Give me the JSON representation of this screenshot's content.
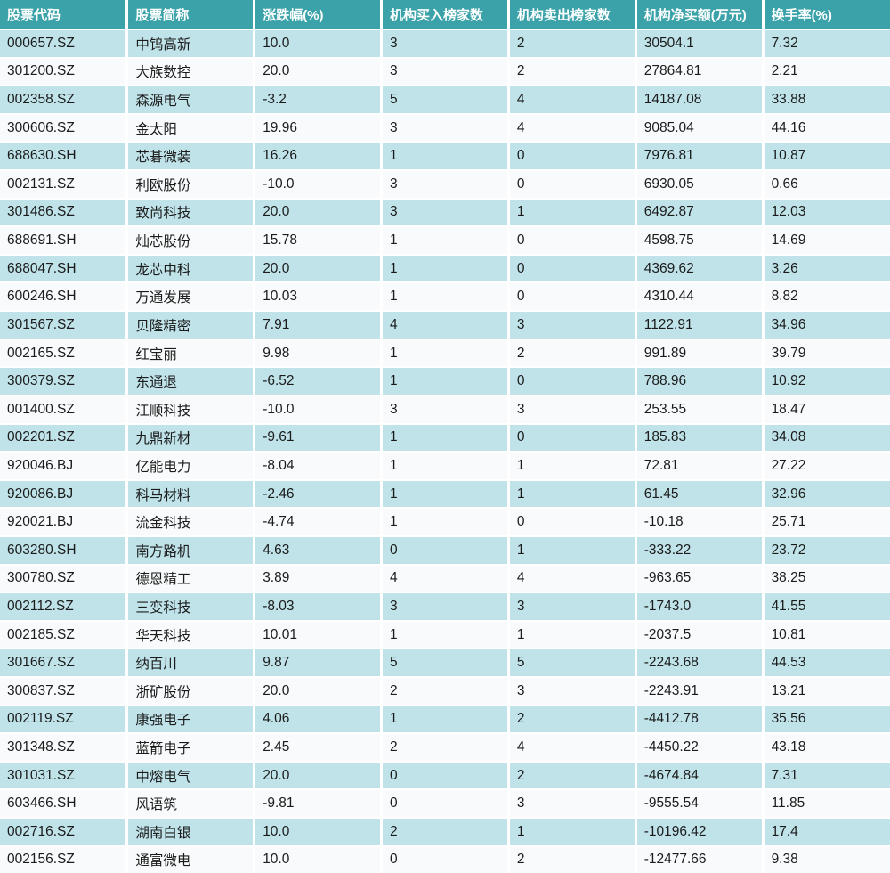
{
  "colors": {
    "header_bg": "#3AA2A8",
    "header_text": "#FFFFFF",
    "row_alt_bg": "#BFE3E9",
    "row_bg": "#F8FAFB",
    "grid_line": "#FFFFFF",
    "body_text": "#1B1B1B"
  },
  "chart_data": {
    "type": "table",
    "title": "",
    "columns": [
      "股票代码",
      "股票简称",
      "涨跌幅(%)",
      "机构买入榜家数",
      "机构卖出榜家数",
      "机构净买额(万元)",
      "换手率(%)"
    ],
    "rows": [
      [
        "000657.SZ",
        "中钨高新",
        "10.0",
        "3",
        "2",
        "30504.1",
        "7.32"
      ],
      [
        "301200.SZ",
        "大族数控",
        "20.0",
        "3",
        "2",
        "27864.81",
        "2.21"
      ],
      [
        "002358.SZ",
        "森源电气",
        "-3.2",
        "5",
        "4",
        "14187.08",
        "33.88"
      ],
      [
        "300606.SZ",
        "金太阳",
        "19.96",
        "3",
        "4",
        "9085.04",
        "44.16"
      ],
      [
        "688630.SH",
        "芯碁微装",
        "16.26",
        "1",
        "0",
        "7976.81",
        "10.87"
      ],
      [
        "002131.SZ",
        "利欧股份",
        "-10.0",
        "3",
        "0",
        "6930.05",
        "0.66"
      ],
      [
        "301486.SZ",
        "致尚科技",
        "20.0",
        "3",
        "1",
        "6492.87",
        "12.03"
      ],
      [
        "688691.SH",
        "灿芯股份",
        "15.78",
        "1",
        "0",
        "4598.75",
        "14.69"
      ],
      [
        "688047.SH",
        "龙芯中科",
        "20.0",
        "1",
        "0",
        "4369.62",
        "3.26"
      ],
      [
        "600246.SH",
        "万通发展",
        "10.03",
        "1",
        "0",
        "4310.44",
        "8.82"
      ],
      [
        "301567.SZ",
        "贝隆精密",
        "7.91",
        "4",
        "3",
        "1122.91",
        "34.96"
      ],
      [
        "002165.SZ",
        "红宝丽",
        "9.98",
        "1",
        "2",
        "991.89",
        "39.79"
      ],
      [
        "300379.SZ",
        "东通退",
        "-6.52",
        "1",
        "0",
        "788.96",
        "10.92"
      ],
      [
        "001400.SZ",
        "江顺科技",
        "-10.0",
        "3",
        "3",
        "253.55",
        "18.47"
      ],
      [
        "002201.SZ",
        "九鼎新材",
        "-9.61",
        "1",
        "0",
        "185.83",
        "34.08"
      ],
      [
        "920046.BJ",
        "亿能电力",
        "-8.04",
        "1",
        "1",
        "72.81",
        "27.22"
      ],
      [
        "920086.BJ",
        "科马材料",
        "-2.46",
        "1",
        "1",
        "61.45",
        "32.96"
      ],
      [
        "920021.BJ",
        "流金科技",
        "-4.74",
        "1",
        "0",
        "-10.18",
        "25.71"
      ],
      [
        "603280.SH",
        "南方路机",
        "4.63",
        "0",
        "1",
        "-333.22",
        "23.72"
      ],
      [
        "300780.SZ",
        "德恩精工",
        "3.89",
        "4",
        "4",
        "-963.65",
        "38.25"
      ],
      [
        "002112.SZ",
        "三变科技",
        "-8.03",
        "3",
        "3",
        "-1743.0",
        "41.55"
      ],
      [
        "002185.SZ",
        "华天科技",
        "10.01",
        "1",
        "1",
        "-2037.5",
        "10.81"
      ],
      [
        "301667.SZ",
        "纳百川",
        "9.87",
        "5",
        "5",
        "-2243.68",
        "44.53"
      ],
      [
        "300837.SZ",
        "浙矿股份",
        "20.0",
        "2",
        "3",
        "-2243.91",
        "13.21"
      ],
      [
        "002119.SZ",
        "康强电子",
        "4.06",
        "1",
        "2",
        "-4412.78",
        "35.56"
      ],
      [
        "301348.SZ",
        "蓝箭电子",
        "2.45",
        "2",
        "4",
        "-4450.22",
        "43.18"
      ],
      [
        "301031.SZ",
        "中熔电气",
        "20.0",
        "0",
        "2",
        "-4674.84",
        "7.31"
      ],
      [
        "603466.SH",
        "风语筑",
        "-9.81",
        "0",
        "3",
        "-9555.54",
        "11.85"
      ],
      [
        "002716.SZ",
        "湖南白银",
        "10.0",
        "2",
        "1",
        "-10196.42",
        "17.4"
      ],
      [
        "002156.SZ",
        "通富微电",
        "10.0",
        "0",
        "2",
        "-12477.66",
        "9.38"
      ]
    ]
  }
}
